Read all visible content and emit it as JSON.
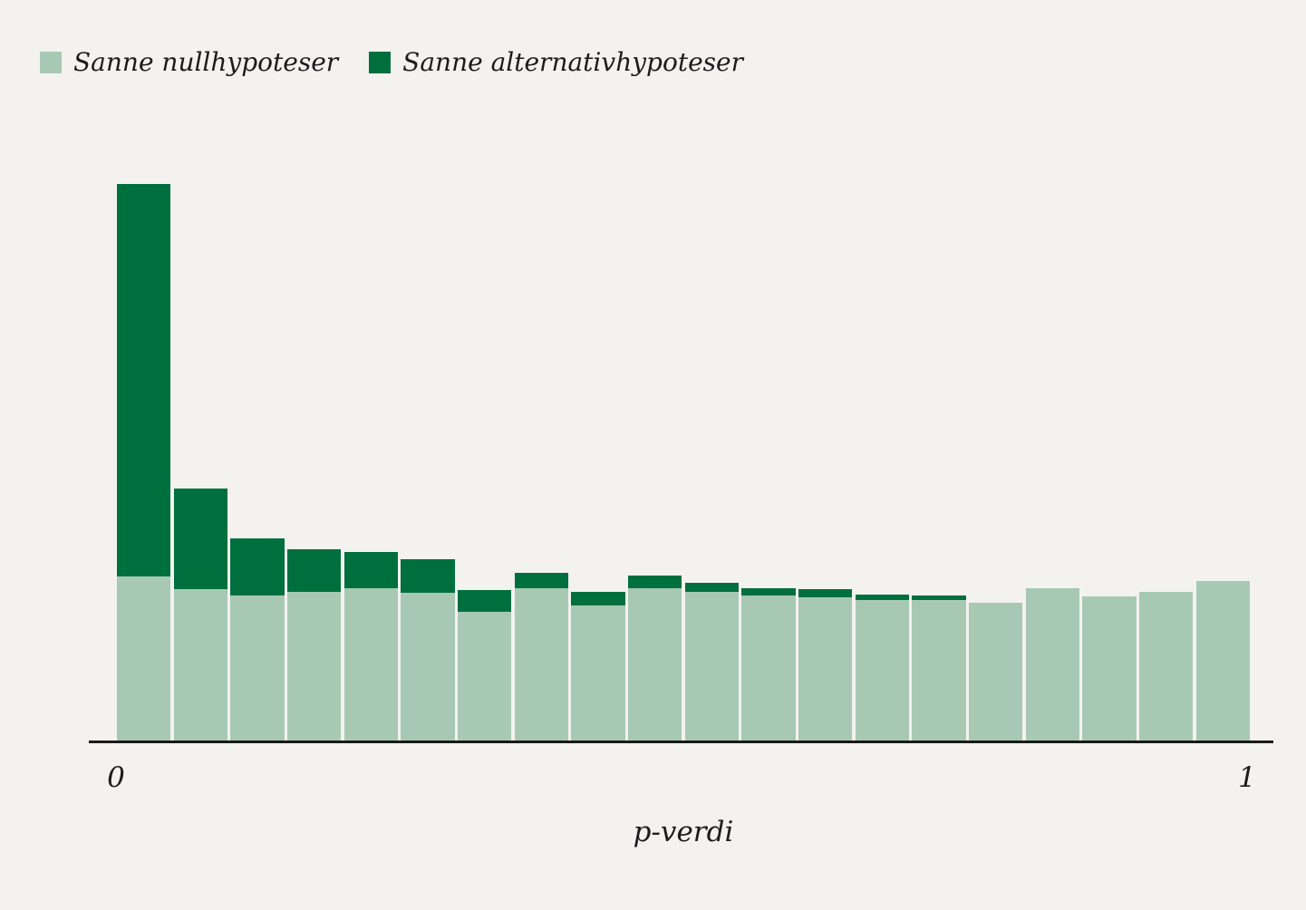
{
  "page": {
    "background": "#f3f2ef",
    "axis_color": "#1a1a1a",
    "text_color": "#1c1c1c"
  },
  "legend": {
    "items": [
      {
        "label": "Sanne nullhypoteser",
        "color": "#a7c9b3"
      },
      {
        "label": "Sanne alternativhypoteser",
        "color": "#006f3e"
      }
    ]
  },
  "axis": {
    "tick_left": "0",
    "tick_right": "1",
    "xlabel": "p-verdi"
  },
  "chart_data": {
    "type": "bar",
    "stacked": true,
    "orientation": "vertical",
    "title": "",
    "xlabel": "p-verdi",
    "ylabel": "",
    "grid": false,
    "legend_position": "top-left",
    "x_axis": {
      "min": 0,
      "max": 1,
      "tick_labels": [
        "0",
        "1"
      ],
      "bins": 20,
      "bin_width": 0.05
    },
    "y_axis": {
      "visible": false,
      "unit": "relative count (estimated from pixels, 1 unit = 1 px)",
      "max": 640
    },
    "categories": [
      0.0,
      0.05,
      0.1,
      0.15,
      0.2,
      0.25,
      0.3,
      0.35,
      0.4,
      0.45,
      0.5,
      0.55,
      0.6,
      0.65,
      0.7,
      0.75,
      0.8,
      0.85,
      0.9,
      0.95
    ],
    "series": [
      {
        "name": "Sanne nullhypoteser",
        "color": "#a7c9b3",
        "values": [
          182,
          168,
          161,
          165,
          169,
          164,
          143,
          169,
          150,
          169,
          165,
          161,
          159,
          156,
          156,
          153,
          169,
          160,
          165,
          177
        ]
      },
      {
        "name": "Sanne alternativhypoteser",
        "color": "#006f3e",
        "values": [
          433,
          111,
          63,
          47,
          40,
          37,
          24,
          17,
          15,
          14,
          10,
          8,
          9,
          6,
          5,
          0,
          0,
          0,
          0,
          0
        ]
      }
    ]
  }
}
